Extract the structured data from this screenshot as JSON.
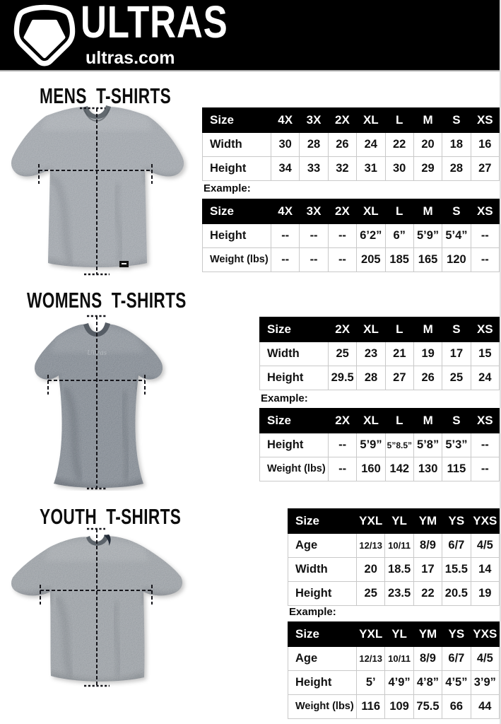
{
  "header": {
    "brand": "ULTRAS",
    "site": "ultras.com",
    "logo_icon": "pentagon-shield-icon"
  },
  "colors": {
    "header_bg": "#000000",
    "brand_text": "#ffffff",
    "table_header_bg": "#000000",
    "table_header_text": "#ffffff",
    "table_border": "#c9c9c9",
    "body_text": "#121212",
    "shirt_mens": "#8d939a",
    "shirt_womens": "#6f7780",
    "shirt_youth": "#878d93"
  },
  "sections": [
    {
      "id": "mens",
      "title": "MENS T-SHIRTS",
      "example_label": "Example:",
      "size_table": {
        "header": [
          "Size",
          "4X",
          "3X",
          "2X",
          "XL",
          "L",
          "M",
          "S",
          "XS"
        ],
        "rows": [
          [
            "Width",
            "30",
            "28",
            "26",
            "24",
            "22",
            "20",
            "18",
            "16"
          ],
          [
            "Height",
            "34",
            "33",
            "32",
            "31",
            "30",
            "29",
            "28",
            "27"
          ]
        ]
      },
      "example_table": {
        "header": [
          "Size",
          "4X",
          "3X",
          "2X",
          "XL",
          "L",
          "M",
          "S",
          "XS"
        ],
        "rows": [
          [
            "Height",
            "--",
            "--",
            "--",
            "6’2”",
            "6”",
            "5’9”",
            "5’4”",
            "--"
          ],
          [
            "Weight (lbs)",
            "--",
            "--",
            "--",
            "205",
            "185",
            "165",
            "120",
            "--"
          ]
        ]
      }
    },
    {
      "id": "womens",
      "title": "WOMENS T-SHIRTS",
      "example_label": "Example:",
      "size_table": {
        "header": [
          "Size",
          "2X",
          "XL",
          "L",
          "M",
          "S",
          "XS"
        ],
        "rows": [
          [
            "Width",
            "25",
            "23",
            "21",
            "19",
            "17",
            "15"
          ],
          [
            "Height",
            "29.5",
            "28",
            "27",
            "26",
            "25",
            "24"
          ]
        ]
      },
      "example_table": {
        "header": [
          "Size",
          "2X",
          "XL",
          "L",
          "M",
          "S",
          "XS"
        ],
        "rows": [
          [
            "Height",
            "--",
            "5’9”",
            "5”8.5”",
            "5’8”",
            "5’3”",
            "--"
          ],
          [
            "Weight (lbs)",
            "--",
            "160",
            "142",
            "130",
            "115",
            "--"
          ]
        ]
      }
    },
    {
      "id": "youth",
      "title": "YOUTH T-SHIRTS",
      "example_label": "Example:",
      "size_table": {
        "header": [
          "Size",
          "YXL",
          "YL",
          "YM",
          "YS",
          "YXS"
        ],
        "rows": [
          [
            "Age",
            "12/13",
            "10/11",
            "8/9",
            "6/7",
            "4/5"
          ],
          [
            "Width",
            "20",
            "18.5",
            "17",
            "15.5",
            "14"
          ],
          [
            "Height",
            "25",
            "23.5",
            "22",
            "20.5",
            "19"
          ]
        ]
      },
      "example_table": {
        "header": [
          "Size",
          "YXL",
          "YL",
          "YM",
          "YS",
          "YXS"
        ],
        "rows": [
          [
            "Age",
            "12/13",
            "10/11",
            "8/9",
            "6/7",
            "4/5"
          ],
          [
            "Height",
            "5’",
            "4’9”",
            "4’8”",
            "4’5”",
            "3’9”"
          ],
          [
            "Weight (lbs)",
            "116",
            "109",
            "75.5",
            "66",
            "44"
          ]
        ]
      }
    }
  ]
}
